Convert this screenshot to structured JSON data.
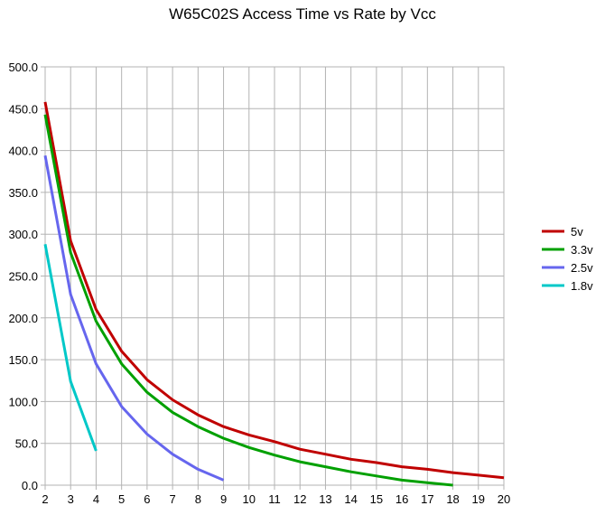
{
  "chart_data": {
    "type": "line",
    "title": "W65C02S Access Time vs Rate by Vcc",
    "xlabel": "",
    "ylabel": "",
    "xlim": [
      2,
      20
    ],
    "ylim": [
      0,
      500
    ],
    "x_ticks": [
      "2",
      "3",
      "4",
      "5",
      "6",
      "7",
      "8",
      "9",
      "10",
      "11",
      "12",
      "13",
      "14",
      "15",
      "16",
      "17",
      "18",
      "19",
      "20"
    ],
    "y_ticks": [
      "0.0",
      "50.0",
      "100.0",
      "150.0",
      "200.0",
      "250.0",
      "300.0",
      "350.0",
      "400.0",
      "450.0",
      "500.0"
    ],
    "grid": true,
    "legend_position": "right",
    "series": [
      {
        "name": "5v",
        "color": "#c00000",
        "x": [
          2,
          3,
          4,
          5,
          6,
          7,
          8,
          9,
          10,
          11,
          12,
          13,
          14,
          15,
          16,
          17,
          18,
          19,
          20
        ],
        "values": [
          458,
          292,
          210,
          160,
          126,
          102,
          84,
          70,
          60,
          52,
          43,
          37,
          31,
          27,
          22,
          19,
          15,
          12,
          9
        ]
      },
      {
        "name": "3.3v",
        "color": "#00a000",
        "x": [
          2,
          3,
          4,
          5,
          6,
          7,
          8,
          9,
          10,
          11,
          12,
          13,
          14,
          15,
          16,
          17,
          18
        ],
        "values": [
          443,
          278,
          196,
          145,
          111,
          87,
          70,
          56,
          45,
          36,
          28,
          22,
          16,
          11,
          6,
          3,
          0
        ]
      },
      {
        "name": "2.5v",
        "color": "#6666ee",
        "x": [
          2,
          3,
          4,
          5,
          6,
          7,
          8,
          9
        ],
        "values": [
          394,
          228,
          145,
          94,
          61,
          37,
          19,
          6
        ]
      },
      {
        "name": "1.8v",
        "color": "#00c8c8",
        "x": [
          2,
          3,
          4
        ],
        "values": [
          288,
          124,
          41
        ]
      }
    ]
  }
}
